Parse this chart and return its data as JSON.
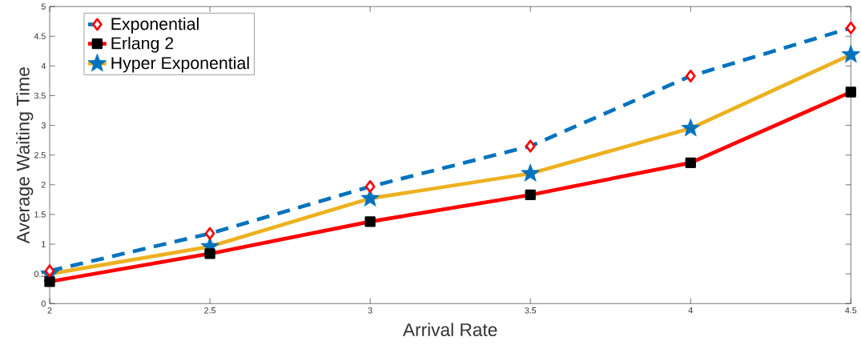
{
  "chart_data": {
    "type": "line",
    "xlabel": "Arrival Rate",
    "ylabel": "Average Waiting Time",
    "x": [
      2,
      2.5,
      3,
      3.5,
      4,
      4.5
    ],
    "series": [
      {
        "name": "Exponential",
        "color": "#0072bd",
        "marker": "diamond",
        "line_style": "dashed",
        "values": [
          0.55,
          1.18,
          1.97,
          2.65,
          3.83,
          4.64
        ]
      },
      {
        "name": "Erlang 2",
        "color": "#ff0000",
        "marker": "square",
        "line_style": "solid",
        "values": [
          0.37,
          0.84,
          1.38,
          1.83,
          2.37,
          3.56
        ]
      },
      {
        "name": "Hyper Exponential",
        "color": "#edb120",
        "marker": "star",
        "line_style": "solid",
        "values": [
          0.5,
          0.96,
          1.77,
          2.19,
          2.95,
          4.19
        ]
      }
    ],
    "xlim": [
      2,
      4.5
    ],
    "xticks": [
      2,
      2.5,
      3,
      3.5,
      4,
      4.5
    ],
    "ylim": [
      0,
      5
    ],
    "yticks": [
      0,
      0.5,
      1,
      1.5,
      2,
      2.5,
      3,
      3.5,
      4,
      4.5,
      5
    ],
    "grid": false,
    "legend": "top left"
  }
}
